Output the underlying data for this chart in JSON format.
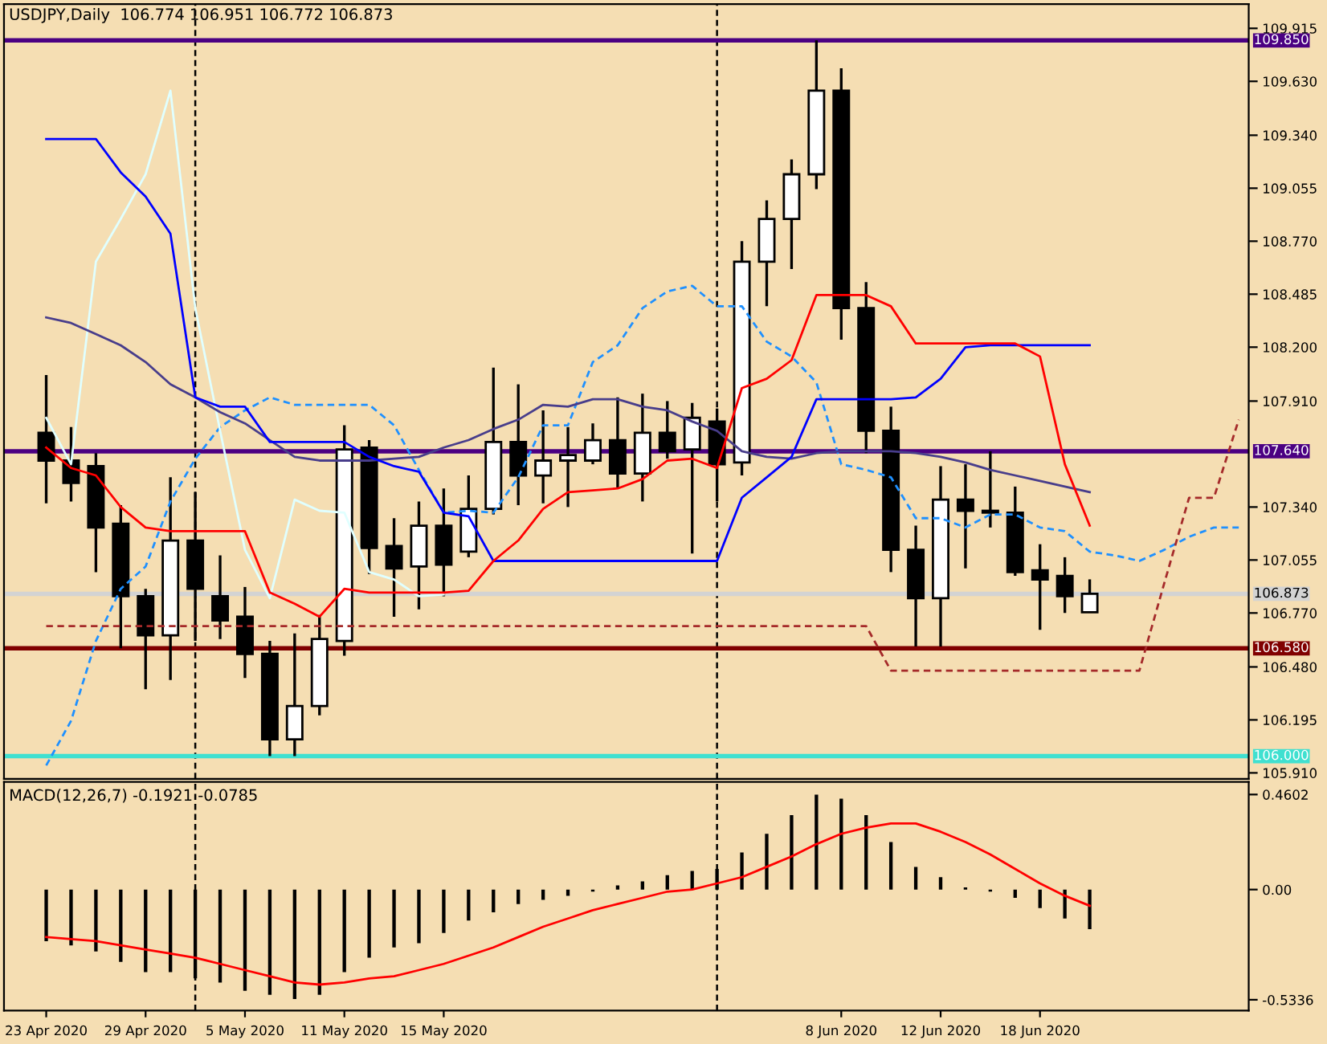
{
  "chart_data": [
    {
      "type": "candlestick",
      "title": "USDJPY,Daily  106.774 106.951 106.772 106.873",
      "categories": [
        null,
        null,
        null,
        null,
        null,
        null,
        null,
        null,
        null,
        null,
        null,
        null,
        null,
        null,
        null,
        null,
        null,
        null,
        null,
        null,
        null,
        null,
        null,
        null,
        null,
        null,
        null,
        null,
        null,
        null,
        null,
        null,
        null,
        null,
        null,
        null,
        null,
        null,
        null,
        null,
        null,
        null,
        null,
        null,
        null,
        null,
        null,
        null,
        null
      ],
      "ohlc": [
        [
          107.74,
          108.05,
          107.36,
          107.59
        ],
        [
          107.59,
          107.77,
          107.37,
          107.47
        ],
        [
          107.56,
          107.63,
          106.99,
          107.23
        ],
        [
          107.25,
          107.35,
          106.58,
          106.86
        ],
        [
          106.86,
          106.9,
          106.36,
          106.65
        ],
        [
          106.65,
          107.5,
          106.41,
          107.16
        ],
        [
          107.16,
          107.42,
          106.62,
          106.9
        ],
        [
          106.86,
          107.08,
          106.63,
          106.73
        ],
        [
          106.75,
          106.91,
          106.42,
          106.55
        ],
        [
          106.55,
          106.62,
          106.0,
          106.09
        ],
        [
          106.09,
          106.66,
          106.0,
          106.27
        ],
        [
          106.27,
          106.76,
          106.22,
          106.63
        ],
        [
          106.62,
          107.78,
          106.54,
          107.65
        ],
        [
          107.66,
          107.7,
          106.98,
          107.12
        ],
        [
          107.13,
          107.28,
          106.75,
          107.01
        ],
        [
          107.02,
          107.37,
          106.79,
          107.24
        ],
        [
          107.24,
          107.44,
          106.86,
          107.03
        ],
        [
          107.1,
          107.51,
          107.07,
          107.33
        ],
        [
          107.33,
          108.09,
          107.3,
          107.69
        ],
        [
          107.69,
          108.0,
          107.35,
          107.51
        ],
        [
          107.51,
          107.86,
          107.36,
          107.59
        ],
        [
          107.59,
          107.77,
          107.34,
          107.62
        ],
        [
          107.59,
          107.79,
          107.57,
          107.7
        ],
        [
          107.7,
          107.93,
          107.44,
          107.52
        ],
        [
          107.52,
          107.95,
          107.37,
          107.74
        ],
        [
          107.74,
          107.91,
          107.6,
          107.64
        ],
        [
          107.65,
          107.9,
          107.09,
          107.82
        ],
        [
          107.8,
          107.87,
          107.37,
          107.57
        ],
        [
          107.58,
          108.77,
          107.51,
          108.66
        ],
        [
          108.66,
          108.99,
          108.42,
          108.89
        ],
        [
          108.89,
          109.21,
          108.62,
          109.13
        ],
        [
          109.13,
          109.85,
          109.05,
          109.58
        ],
        [
          109.58,
          109.7,
          108.24,
          108.41
        ],
        [
          108.41,
          108.55,
          107.63,
          107.75
        ],
        [
          107.75,
          107.88,
          106.99,
          107.11
        ],
        [
          107.11,
          107.24,
          106.59,
          106.85
        ],
        [
          106.85,
          107.56,
          106.59,
          107.38
        ],
        [
          107.38,
          107.57,
          107.01,
          107.32
        ],
        [
          107.32,
          107.64,
          107.23,
          107.31
        ],
        [
          107.31,
          107.45,
          106.97,
          106.99
        ],
        [
          107.0,
          107.14,
          106.68,
          106.95
        ],
        [
          106.97,
          107.07,
          106.77,
          106.86
        ],
        [
          106.774,
          106.951,
          106.772,
          106.873
        ],
        null,
        null,
        null,
        null,
        null,
        null
      ],
      "series": [
        {
          "type": "line",
          "color": "#1e90ff",
          "line_style": "dashed",
          "values": [
            105.95,
            106.19,
            106.62,
            106.9,
            107.02,
            107.37,
            107.6,
            107.77,
            107.86,
            107.93,
            107.89,
            107.89,
            107.89,
            107.89,
            107.78,
            107.54,
            107.31,
            107.32,
            107.31,
            107.5,
            107.78,
            107.78,
            108.12,
            108.21,
            108.41,
            108.5,
            108.53,
            108.42,
            108.42,
            108.23,
            108.15,
            108.01,
            107.57,
            107.54,
            107.5,
            107.28,
            107.28,
            107.23,
            107.3,
            107.3,
            107.23,
            107.21,
            107.1,
            107.08,
            107.05,
            107.11,
            107.18,
            107.23,
            107.23
          ]
        },
        {
          "type": "line",
          "color": "#a52a2a",
          "line_style": "dashed",
          "values": [
            106.7,
            106.7,
            106.7,
            106.7,
            106.7,
            106.7,
            106.7,
            106.7,
            106.7,
            106.7,
            106.7,
            106.7,
            106.7,
            106.7,
            106.7,
            106.7,
            106.7,
            106.7,
            106.7,
            106.7,
            106.7,
            106.7,
            106.7,
            106.7,
            106.7,
            106.7,
            106.7,
            106.7,
            106.7,
            106.7,
            106.7,
            106.7,
            106.7,
            106.7,
            106.46,
            106.46,
            106.46,
            106.46,
            106.46,
            106.46,
            106.46,
            106.46,
            106.46,
            106.46,
            106.46,
            106.93,
            107.39,
            107.39,
            107.81
          ]
        },
        {
          "type": "line",
          "color": "#e0ffff",
          "line_style": "solid",
          "values": [
            107.82,
            107.57,
            108.66,
            108.89,
            109.13,
            109.58,
            108.41,
            107.75,
            107.11,
            106.85,
            107.38,
            107.32,
            107.31,
            106.99,
            106.95,
            106.86,
            106.87,
            null,
            null,
            null,
            null,
            null,
            null,
            null,
            null,
            null,
            null,
            null,
            null,
            null,
            null,
            null,
            null,
            null,
            null,
            null,
            null,
            null,
            null,
            null,
            null,
            null,
            null,
            null,
            null,
            null,
            null,
            null,
            null
          ]
        },
        {
          "type": "line",
          "color": "#483d8b",
          "line_style": "solid",
          "values": [
            108.36,
            108.33,
            108.27,
            108.21,
            108.12,
            108.0,
            107.93,
            107.85,
            107.79,
            107.7,
            107.61,
            107.59,
            107.59,
            107.59,
            107.6,
            107.61,
            107.66,
            107.7,
            107.76,
            107.81,
            107.89,
            107.88,
            107.92,
            107.92,
            107.88,
            107.86,
            107.8,
            107.75,
            107.64,
            107.61,
            107.6,
            107.63,
            107.64,
            107.64,
            107.64,
            107.63,
            107.61,
            107.58,
            107.54,
            107.51,
            107.48,
            107.45,
            107.42,
            null,
            null,
            null,
            null,
            null,
            null
          ]
        },
        {
          "type": "line",
          "color": "#0000ff",
          "line_style": "solid",
          "values": [
            109.32,
            109.32,
            109.32,
            109.14,
            109.01,
            108.81,
            107.93,
            107.88,
            107.88,
            107.69,
            107.69,
            107.69,
            107.69,
            107.61,
            107.56,
            107.53,
            107.31,
            107.29,
            107.05,
            107.05,
            107.05,
            107.05,
            107.05,
            107.05,
            107.05,
            107.05,
            107.05,
            107.05,
            107.39,
            107.5,
            107.61,
            107.92,
            107.92,
            107.92,
            107.92,
            107.93,
            108.03,
            108.2,
            108.21,
            108.21,
            108.21,
            108.21,
            108.21,
            null,
            null,
            null,
            null,
            null,
            null
          ]
        },
        {
          "type": "line",
          "color": "#ff0000",
          "line_style": "solid",
          "values": [
            107.66,
            107.55,
            107.51,
            107.34,
            107.23,
            107.21,
            107.21,
            107.21,
            107.21,
            106.88,
            106.82,
            106.75,
            106.9,
            106.88,
            106.88,
            106.88,
            106.88,
            106.89,
            107.05,
            107.16,
            107.33,
            107.42,
            107.43,
            107.44,
            107.49,
            107.59,
            107.6,
            107.55,
            107.98,
            108.03,
            108.13,
            108.48,
            108.48,
            108.48,
            108.42,
            108.22,
            108.22,
            108.22,
            108.22,
            108.22,
            108.15,
            107.57,
            107.24,
            null,
            null,
            null,
            null,
            null,
            null
          ]
        }
      ],
      "ylim": [
        105.878,
        110.045
      ],
      "yticks": [
        {
          "value": 105.91,
          "label": "105.910"
        },
        {
          "value": 106.195,
          "label": "106.195"
        },
        {
          "value": 106.48,
          "label": "106.480"
        },
        {
          "value": 106.77,
          "label": "106.770"
        },
        {
          "value": 107.055,
          "label": "107.055"
        },
        {
          "value": 107.34,
          "label": "107.340"
        },
        {
          "value": 107.91,
          "label": "107.910"
        },
        {
          "value": 108.2,
          "label": "108.200"
        },
        {
          "value": 108.485,
          "label": "108.485"
        },
        {
          "value": 108.77,
          "label": "108.770"
        },
        {
          "value": 109.055,
          "label": "109.055"
        },
        {
          "value": 109.34,
          "label": "109.340"
        },
        {
          "value": 109.63,
          "label": "109.630"
        },
        {
          "value": 109.915,
          "label": "109.915"
        }
      ],
      "ref_lines": [
        {
          "axis": "y",
          "value": 109.85,
          "label": "109.850",
          "color": "#4b0082"
        },
        {
          "axis": "y",
          "value": 107.64,
          "label": "107.640",
          "color": "#4b0082"
        },
        {
          "axis": "y",
          "value": 106.873,
          "label": "106.873",
          "color": "#d3d3d3"
        },
        {
          "axis": "y",
          "value": 106.58,
          "label": "106.580",
          "color": "#800000"
        },
        {
          "axis": "y",
          "value": 106.0,
          "label": "106.000",
          "color": "#40e0d0"
        }
      ],
      "tick_labels": "y"
    },
    {
      "type": "bar",
      "title": "MACD(12,26,7) -0.1921 -0.0785",
      "categories": [
        "23 Apr 2020",
        null,
        null,
        null,
        "29 Apr 2020",
        null,
        null,
        null,
        "5 May 2020",
        null,
        null,
        null,
        "11 May 2020",
        null,
        null,
        null,
        "15 May 2020",
        null,
        null,
        null,
        null,
        null,
        null,
        null,
        null,
        null,
        null,
        null,
        null,
        null,
        null,
        null,
        "8 Jun 2020",
        null,
        null,
        null,
        "12 Jun 2020",
        null,
        null,
        null,
        "18 Jun 2020",
        null,
        null,
        null,
        null,
        null,
        null,
        null,
        null
      ],
      "series": [
        {
          "type": "bar",
          "color": "#000000",
          "values": [
            -0.25,
            -0.27,
            -0.3,
            -0.35,
            -0.4,
            -0.4,
            -0.43,
            -0.45,
            -0.49,
            -0.51,
            -0.53,
            -0.51,
            -0.4,
            -0.33,
            -0.28,
            -0.26,
            -0.21,
            -0.15,
            -0.11,
            -0.07,
            -0.05,
            -0.03,
            -0.01,
            0.02,
            0.04,
            0.07,
            0.09,
            0.1,
            0.18,
            0.27,
            0.36,
            0.46,
            0.44,
            0.36,
            0.23,
            0.11,
            0.06,
            0.01,
            -0.01,
            -0.04,
            -0.09,
            -0.14,
            -0.1921,
            null,
            null,
            null,
            null,
            null,
            null
          ]
        },
        {
          "type": "line",
          "color": "#ff0000",
          "line_style": "solid",
          "values": [
            -0.23,
            -0.24,
            -0.25,
            -0.27,
            -0.29,
            -0.31,
            -0.33,
            -0.36,
            -0.39,
            -0.42,
            -0.45,
            -0.46,
            -0.45,
            -0.43,
            -0.42,
            -0.39,
            -0.36,
            -0.32,
            -0.28,
            -0.23,
            -0.18,
            -0.14,
            -0.1,
            -0.07,
            -0.04,
            -0.01,
            0.0,
            0.03,
            0.06,
            0.11,
            0.16,
            0.22,
            0.27,
            0.3,
            0.32,
            0.32,
            0.28,
            0.23,
            0.17,
            0.1,
            0.03,
            -0.03,
            -0.0785,
            null,
            null,
            null,
            null,
            null,
            null
          ]
        }
      ],
      "ylim": [
        -0.586,
        0.521
      ],
      "yticks": [
        {
          "value": 0.4602,
          "label": "0.4602"
        },
        {
          "value": 0,
          "label": "0.00"
        },
        {
          "value": -0.5336,
          "label": "-0.5336"
        }
      ]
    }
  ]
}
